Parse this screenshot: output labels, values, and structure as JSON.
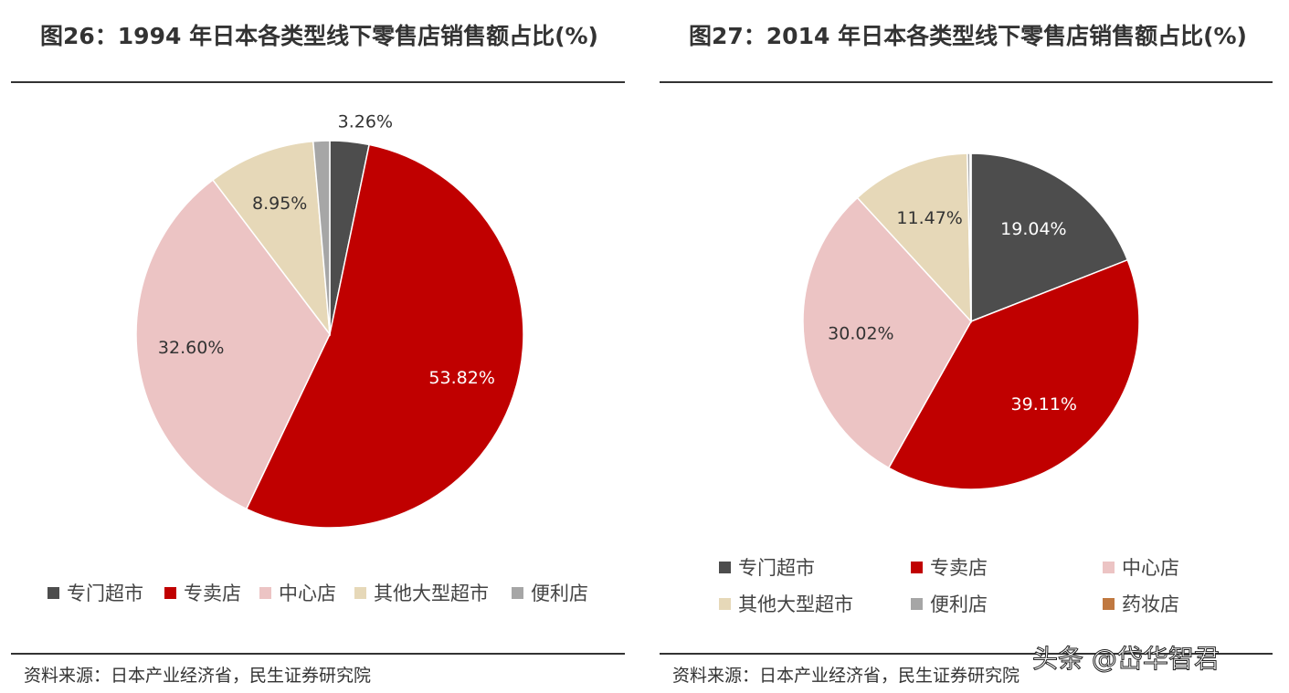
{
  "chart_data": [
    {
      "type": "pie",
      "title": "图26：1994 年日本各类型线下零售店销售额占比(%)",
      "categories": [
        "专门超市",
        "专卖店",
        "中心店",
        "其他大型超市",
        "便利店"
      ],
      "values": [
        3.26,
        53.82,
        32.6,
        8.95,
        1.37
      ],
      "value_labels": [
        "3.26%",
        "53.82%",
        "32.60%",
        "8.95%",
        null
      ],
      "colors": [
        "#4d4d4d",
        "#c00000",
        "#ecc4c4",
        "#e6d8b8",
        "#a6a6a6"
      ],
      "source": "资料来源：日本产业经济省，民生证券研究院"
    },
    {
      "type": "pie",
      "title": "图27：2014 年日本各类型线下零售店销售额占比(%)",
      "categories": [
        "专门超市",
        "专卖店",
        "中心店",
        "其他大型超市",
        "便利店",
        "药妆店"
      ],
      "values": [
        19.04,
        39.11,
        30.02,
        11.47,
        0.26,
        0.1
      ],
      "value_labels": [
        "19.04%",
        "39.11%",
        "30.02%",
        "11.47%",
        null,
        null
      ],
      "colors": [
        "#4d4d4d",
        "#c00000",
        "#ecc4c4",
        "#e6d8b8",
        "#a6a6a6",
        "#c07840"
      ],
      "source": "资料来源：日本产业经济省，民生证券研究院"
    }
  ],
  "watermark": "头条 @岱华智君"
}
